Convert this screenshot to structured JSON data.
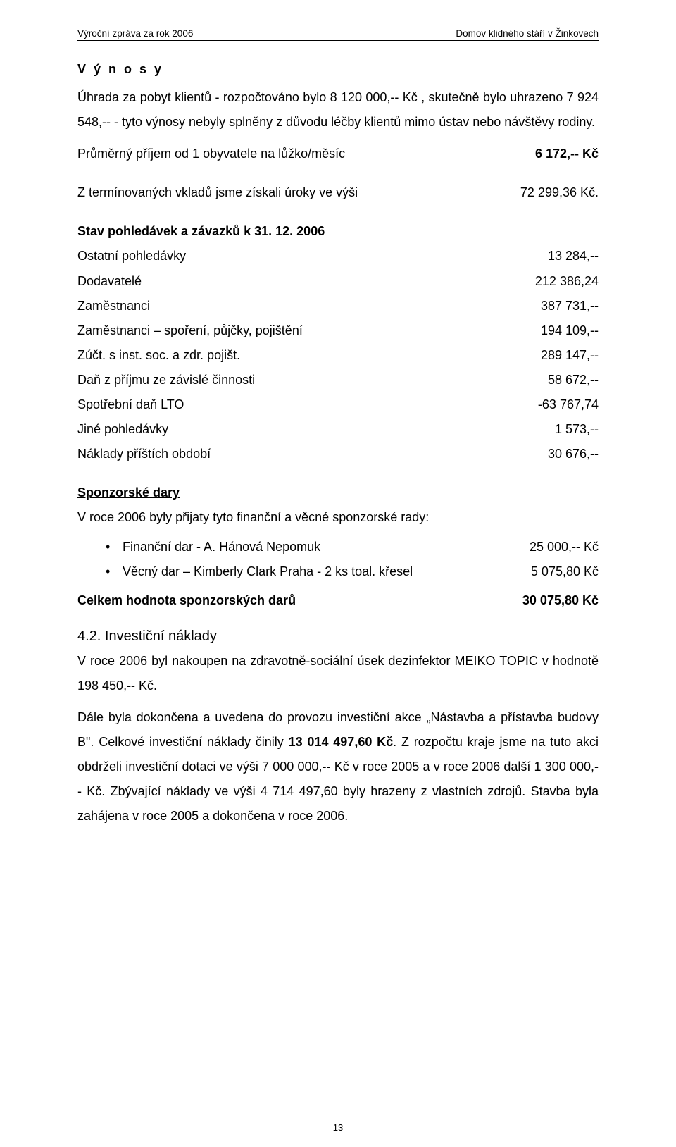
{
  "header": {
    "left": "Výroční zpráva za rok 2006",
    "right": "Domov klidného stáří v Žinkovech"
  },
  "vynosy": {
    "title": "V ý n o s y",
    "para": "Úhrada za pobyt klientů  - rozpočtováno bylo 8 120 000,-- Kč , skutečně bylo uhrazeno 7 924 548,-- - tyto výnosy nebyly splněny z důvodu léčby klientů mimo ústav nebo  návštěvy rodiny.",
    "prijem_label": "Průměrný příjem od 1 obyvatele na lůžko/měsíc",
    "prijem_value": "6 172,--  Kč",
    "uroky_label": "Z termínovaných vkladů jsme získali úroky ve výši",
    "uroky_value": "72 299,36 Kč."
  },
  "pohledavky": {
    "title": "Stav pohledávek a závazků k 31. 12. 2006",
    "rows": [
      {
        "label": "Ostatní pohledávky",
        "value": "13 284,--"
      },
      {
        "label": "Dodavatelé",
        "value": "212 386,24"
      },
      {
        "label": "Zaměstnanci",
        "value": "387 731,--"
      },
      {
        "label": "Zaměstnanci – spoření, půjčky, pojištění",
        "value": "194 109,--"
      },
      {
        "label": "Zúčt. s inst. soc. a zdr. pojišt.",
        "value": "289 147,--"
      },
      {
        "label": "Daň z příjmu ze závislé činnosti",
        "value": "58 672,--"
      },
      {
        "label": "Spotřební daň LTO",
        "value": "-63 767,74"
      },
      {
        "label": "Jiné pohledávky",
        "value": "1 573,--"
      },
      {
        "label": "Náklady příštích období",
        "value": "30 676,--"
      }
    ]
  },
  "sponzor": {
    "title": "Sponzorské dary",
    "intro": "V roce 2006 byly přijaty tyto finanční a věcné sponzorské rady:",
    "items": [
      {
        "text": "Finanční dar - A. Hánová Nepomuk",
        "amount": "25 000,-- Kč"
      },
      {
        "text": "Věcný dar – Kimberly Clark  Praha  - 2 ks toal. křesel",
        "amount": "5 075,80 Kč"
      }
    ],
    "total_label": "Celkem hodnota sponzorských darů",
    "total_value": "30 075,80 Kč"
  },
  "investice": {
    "heading": "4.2.  Investiční náklady",
    "para": "V roce 2006 byl nakoupen na zdravotně-sociální úsek dezinfektor MEIKO TOPIC v hodnotě 198 450,-- Kč.",
    "para2_pre": "Dále  byla dokončena a uvedena do provozu investiční  akce  „Nástavba a přístavba budovy B\".  Celkové investiční náklady činily ",
    "para2_bold": "13 014 497,60 Kč",
    "para2_post": ". Z rozpočtu kraje jsme na tuto akci obdrželi investiční dotaci ve výši 7 000 000,-- Kč v roce 2005 a v roce 2006 další 1 300 000,-- Kč. Zbývající náklady ve výši 4 714 497,60 byly hrazeny z vlastních zdrojů. Stavba byla zahájena v roce 2005 a dokončena v roce 2006."
  },
  "page_number": "13"
}
